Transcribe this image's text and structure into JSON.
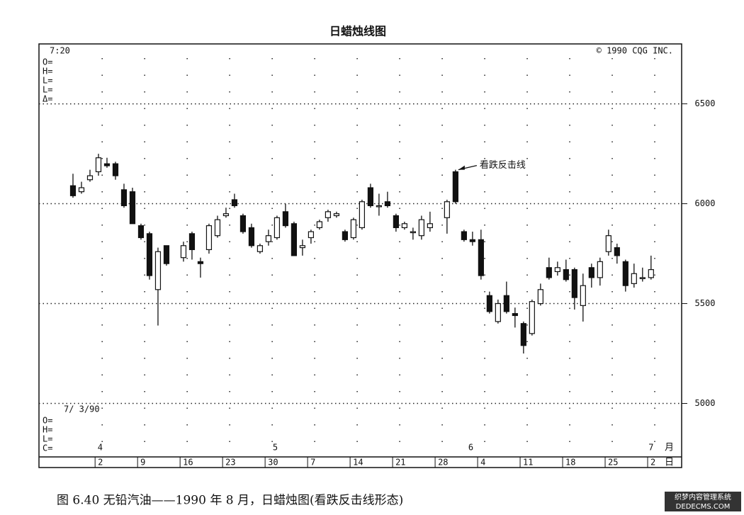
{
  "chart_data": {
    "type": "candlestick",
    "title": "日蜡烛线图",
    "caption": "图 6.40   无铅汽油——1990 年 8 月，日蜡烛图(看跌反击线形态)",
    "header_left": "7:20",
    "header_right": "© 1990 CQG INC.",
    "top_fields": [
      "O=",
      "H=",
      "L=",
      "L=",
      "Δ="
    ],
    "bottom_date": "7/ 3/90",
    "bottom_fields": [
      "O=",
      "H=",
      "L=",
      "C="
    ],
    "annotation": "看跌反击线",
    "watermark": [
      "织梦内容管理系统",
      "DEDECMS.COM"
    ],
    "x": [
      0,
      1,
      2,
      3,
      4,
      5,
      6,
      7,
      8,
      9,
      10,
      11,
      13,
      14,
      15,
      16,
      17,
      18,
      19,
      20,
      21,
      22,
      23,
      24,
      25,
      26,
      27,
      28,
      29,
      30,
      31,
      32,
      33,
      34,
      35,
      36,
      37,
      38,
      39,
      40,
      41,
      42,
      44,
      45,
      46,
      47,
      48,
      49,
      50,
      51,
      52,
      53,
      54,
      55,
      56,
      57,
      58,
      59,
      60,
      61,
      62,
      63,
      64,
      65,
      66,
      67,
      68
    ],
    "open": [
      6090,
      6060,
      6120,
      6160,
      6200,
      6200,
      6070,
      6060,
      5890,
      5850,
      5570,
      5790,
      5730,
      5850,
      5710,
      5770,
      5840,
      5940,
      6020,
      5940,
      5880,
      5760,
      5810,
      5830,
      5960,
      5900,
      5780,
      5830,
      5880,
      5930,
      5940,
      5860,
      5830,
      5880,
      6080,
      5990,
      6010,
      5940,
      5880,
      5860,
      5840,
      5880,
      5930,
      6160,
      5860,
      5820,
      5820,
      5540,
      5410,
      5540,
      5450,
      5400,
      5350,
      5500,
      5680,
      5660,
      5670,
      5670,
      5490,
      5680,
      5630,
      5760,
      5780,
      5710,
      5600,
      5630,
      5630
    ],
    "high": [
      6150,
      6110,
      6170,
      6250,
      6230,
      6210,
      6100,
      6080,
      5900,
      5860,
      5780,
      5790,
      5810,
      5860,
      5730,
      5900,
      5940,
      5980,
      6050,
      5950,
      5900,
      5800,
      5870,
      5940,
      6000,
      5910,
      5820,
      5870,
      5920,
      5970,
      5960,
      5870,
      5930,
      6020,
      6100,
      6050,
      6060,
      5950,
      5910,
      5880,
      5940,
      5960,
      6020,
      6170,
      5870,
      5860,
      5870,
      5560,
      5520,
      5610,
      5480,
      5410,
      5520,
      5600,
      5730,
      5710,
      5720,
      5680,
      5650,
      5700,
      5730,
      5870,
      5800,
      5720,
      5700,
      5680,
      5740
    ],
    "low": [
      6030,
      6050,
      6110,
      6140,
      6180,
      6120,
      5980,
      5900,
      5820,
      5620,
      5390,
      5690,
      5710,
      5720,
      5630,
      5750,
      5830,
      5930,
      5980,
      5850,
      5780,
      5750,
      5790,
      5820,
      5880,
      5740,
      5740,
      5800,
      5870,
      5910,
      5930,
      5810,
      5820,
      5870,
      5980,
      5940,
      5980,
      5860,
      5870,
      5820,
      5820,
      5860,
      5850,
      6000,
      5810,
      5790,
      5620,
      5450,
      5400,
      5450,
      5380,
      5250,
      5340,
      5490,
      5620,
      5640,
      5610,
      5470,
      5410,
      5580,
      5590,
      5740,
      5700,
      5560,
      5580,
      5610,
      5620
    ],
    "close": [
      6040,
      6080,
      6140,
      6230,
      6190,
      6140,
      5990,
      5900,
      5830,
      5640,
      5760,
      5700,
      5790,
      5770,
      5700,
      5890,
      5920,
      5950,
      5990,
      5860,
      5790,
      5790,
      5840,
      5930,
      5890,
      5740,
      5790,
      5860,
      5910,
      5960,
      5950,
      5820,
      5920,
      6010,
      5990,
      5990,
      5990,
      5880,
      5900,
      5860,
      5920,
      5900,
      6010,
      6010,
      5820,
      5810,
      5640,
      5460,
      5500,
      5460,
      5440,
      5290,
      5510,
      5570,
      5630,
      5680,
      5620,
      5530,
      5590,
      5630,
      5710,
      5840,
      5740,
      5590,
      5650,
      5630,
      5670
    ],
    "annotation_index": 43,
    "xlim": [
      -4,
      71.6
    ],
    "xticks": [
      {
        "value": 2.6,
        "label": "2"
      },
      {
        "value": 7.6,
        "label": "9"
      },
      {
        "value": 12.6,
        "label": "16"
      },
      {
        "value": 17.6,
        "label": "23"
      },
      {
        "value": 22.6,
        "label": "30"
      },
      {
        "value": 27.6,
        "label": "7"
      },
      {
        "value": 32.6,
        "label": "14"
      },
      {
        "value": 37.6,
        "label": "21"
      },
      {
        "value": 42.6,
        "label": "28"
      },
      {
        "value": 47.6,
        "label": "4"
      },
      {
        "value": 52.6,
        "label": "11"
      },
      {
        "value": 57.6,
        "label": "18"
      },
      {
        "value": 62.6,
        "label": "25"
      },
      {
        "value": 67.6,
        "label": "2"
      }
    ],
    "x_unit": "日",
    "month_ticks": [
      {
        "value": 3.2,
        "label": "4"
      },
      {
        "value": 23.8,
        "label": "5"
      },
      {
        "value": 46.8,
        "label": "6"
      },
      {
        "value": 68,
        "label": "7"
      }
    ],
    "month_unit": "月",
    "ylim": [
      4750,
      6800
    ],
    "yticks": [
      5000,
      5500,
      6000,
      6500
    ],
    "grid": true,
    "up_color": "#ffffff",
    "down_color": "#111111"
  }
}
